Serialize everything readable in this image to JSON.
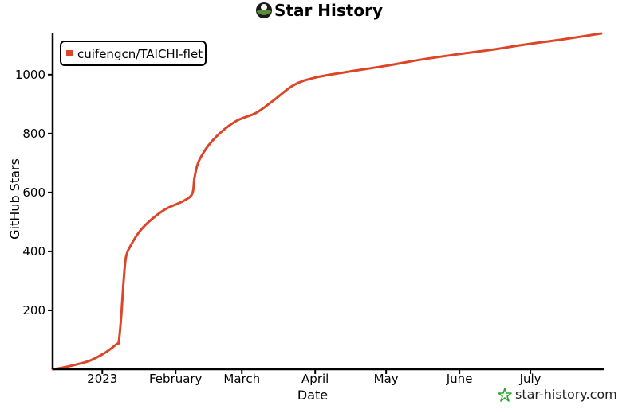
{
  "chart_data": {
    "type": "line",
    "title": "Star History",
    "xlabel": "Date",
    "ylabel": "GitHub Stars",
    "x_tick_labels": [
      "2023",
      "February",
      "March",
      "April",
      "May",
      "June",
      "July"
    ],
    "x_tick_dates": [
      "2023-01-01",
      "2023-02-01",
      "2023-03-01",
      "2023-04-01",
      "2023-05-01",
      "2023-06-01",
      "2023-07-01"
    ],
    "y_ticks": [
      200,
      400,
      600,
      800,
      1000
    ],
    "xlim": [
      "2022-12-11",
      "2023-08-01"
    ],
    "ylim": [
      0,
      1140
    ],
    "legend_position": "top-left",
    "series": [
      {
        "name": "cuifengcn/TAICHI-flet",
        "color": "#dd4528",
        "points": [
          [
            "2022-12-11",
            0
          ],
          [
            "2022-12-15",
            5
          ],
          [
            "2022-12-22",
            18
          ],
          [
            "2022-12-27",
            30
          ],
          [
            "2023-01-02",
            55
          ],
          [
            "2023-01-07",
            85
          ],
          [
            "2023-01-08",
            95
          ],
          [
            "2023-01-09",
            180
          ],
          [
            "2023-01-10",
            300
          ],
          [
            "2023-01-11",
            380
          ],
          [
            "2023-01-13",
            420
          ],
          [
            "2023-01-17",
            470
          ],
          [
            "2023-01-22",
            510
          ],
          [
            "2023-01-28",
            545
          ],
          [
            "2023-02-04",
            570
          ],
          [
            "2023-02-08",
            595
          ],
          [
            "2023-02-09",
            650
          ],
          [
            "2023-02-11",
            710
          ],
          [
            "2023-02-17",
            780
          ],
          [
            "2023-02-26",
            840
          ],
          [
            "2023-03-07",
            870
          ],
          [
            "2023-03-14",
            910
          ],
          [
            "2023-03-23",
            965
          ],
          [
            "2023-04-01",
            990
          ],
          [
            "2023-04-15",
            1010
          ],
          [
            "2023-05-01",
            1030
          ],
          [
            "2023-05-15",
            1050
          ],
          [
            "2023-06-01",
            1070
          ],
          [
            "2023-06-15",
            1085
          ],
          [
            "2023-07-01",
            1105
          ],
          [
            "2023-07-15",
            1120
          ],
          [
            "2023-07-31",
            1140
          ]
        ]
      }
    ]
  },
  "watermark": "star-history.com"
}
